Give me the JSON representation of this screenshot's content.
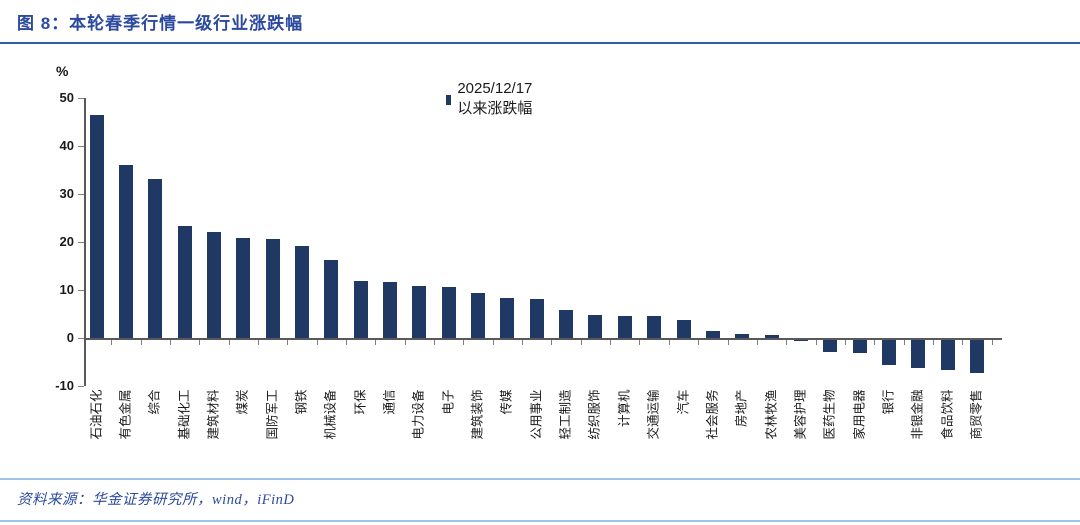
{
  "header": {
    "title": "图 8：本轮春季行情一级行业涨跌幅"
  },
  "footer": {
    "source": "资料来源：华金证券研究所，wind，iFinD"
  },
  "colors": {
    "bar": "#1f3864",
    "title_blue": "#2b4a9e",
    "title_rule": "#2e5fa8",
    "light_rule": "#9dc3e6",
    "axis_line": "#595959",
    "tick_mark": "#7f7f7f"
  },
  "chart_data": {
    "type": "bar",
    "title": "图 8：本轮春季行情一级行业涨跌幅",
    "legend": [
      "2025/12/17以来涨跌幅"
    ],
    "unit_label": "%",
    "categories": [
      "石油石化",
      "有色金属",
      "综合",
      "基础化工",
      "建筑材料",
      "煤炭",
      "国防军工",
      "钢铁",
      "机械设备",
      "环保",
      "通信",
      "电力设备",
      "电子",
      "建筑装饰",
      "传媒",
      "公用事业",
      "轻工制造",
      "纺织服饰",
      "计算机",
      "交通运输",
      "汽车",
      "社会服务",
      "房地产",
      "农林牧渔",
      "美容护理",
      "医药生物",
      "家用电器",
      "银行",
      "非银金融",
      "食品饮料",
      "商贸零售"
    ],
    "values": [
      46.5,
      36.0,
      33.2,
      23.3,
      22.0,
      20.8,
      20.6,
      19.1,
      16.3,
      11.9,
      11.6,
      10.8,
      10.7,
      9.3,
      8.3,
      8.2,
      5.8,
      4.8,
      4.6,
      4.5,
      3.7,
      1.5,
      0.9,
      0.7,
      -0.2,
      -2.5,
      -2.7,
      -5.3,
      -5.9,
      -6.3,
      -6.8
    ],
    "ylim": [
      -10,
      50
    ],
    "y_ticks": [
      50,
      40,
      30,
      20,
      10,
      0,
      -10
    ],
    "grid": false,
    "legend_position": "top-center",
    "bar_color": "#1f3864"
  }
}
